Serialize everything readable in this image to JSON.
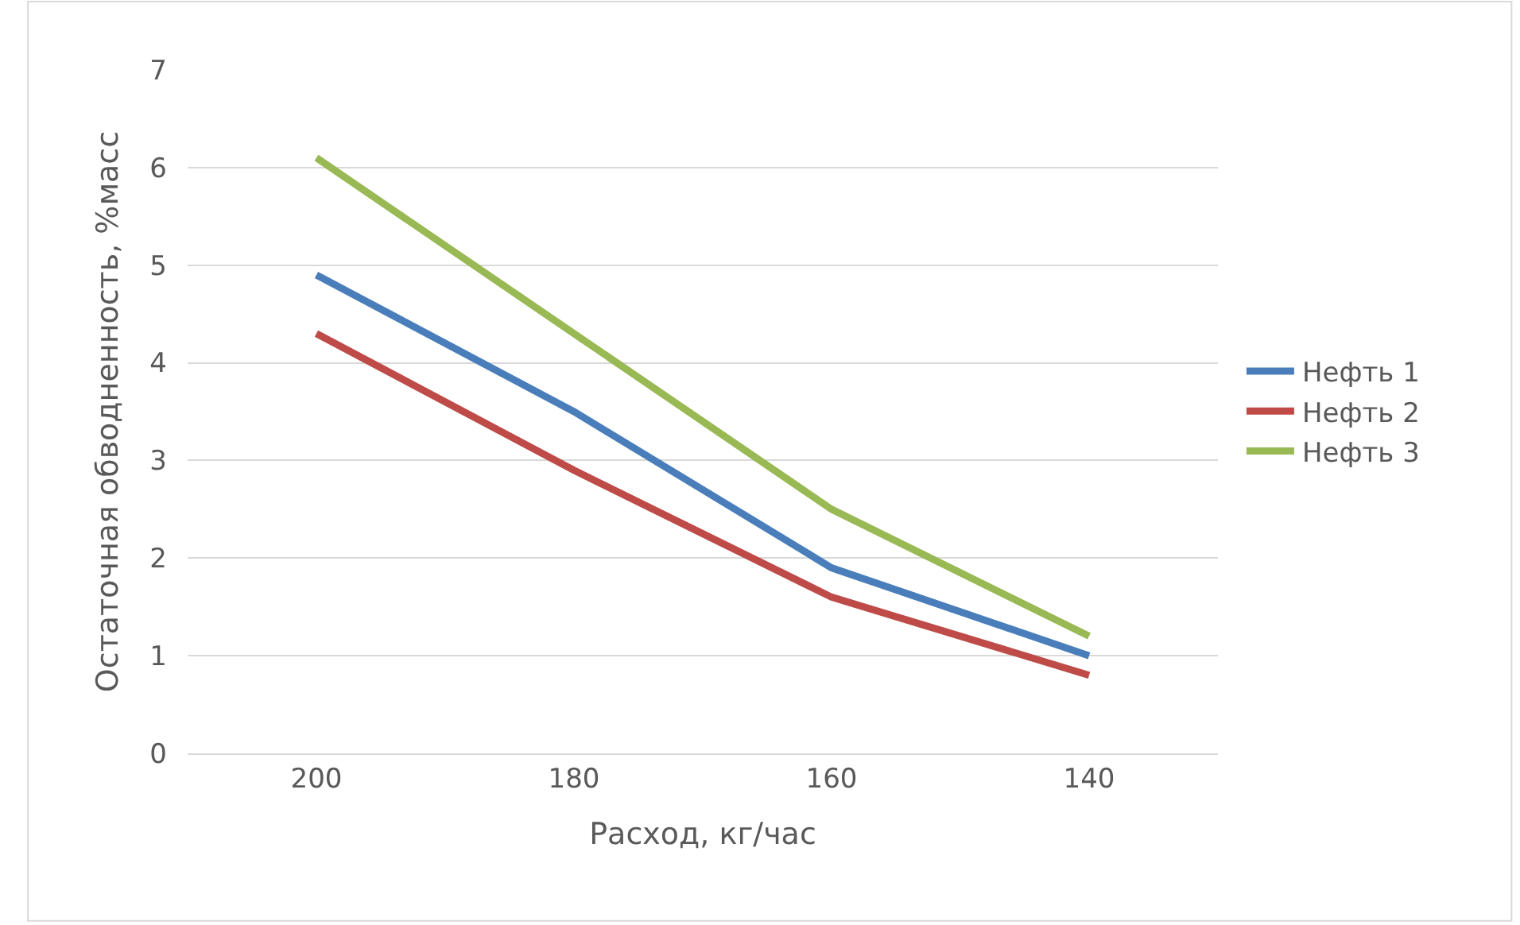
{
  "chart_data": {
    "type": "line",
    "xlabel": "Расход, кг/час",
    "ylabel": "Остаточная обводненность, %масс",
    "categories": [
      "200",
      "180",
      "160",
      "140"
    ],
    "series": [
      {
        "name": "Нефть 1",
        "color": "#4a7ebb",
        "values": [
          4.9,
          3.5,
          1.9,
          1.0
        ]
      },
      {
        "name": "Нефть 2",
        "color": "#be4b48",
        "values": [
          4.3,
          2.9,
          1.6,
          0.8
        ]
      },
      {
        "name": "Нефть 3",
        "color": "#98b954",
        "values": [
          6.1,
          4.3,
          2.5,
          1.2
        ]
      }
    ],
    "ylim": [
      0,
      7
    ],
    "yticks": [
      0,
      1,
      2,
      3,
      4,
      5,
      6,
      7
    ],
    "grid": "y",
    "legend": "right",
    "marker": "none",
    "line_style": "solid"
  }
}
